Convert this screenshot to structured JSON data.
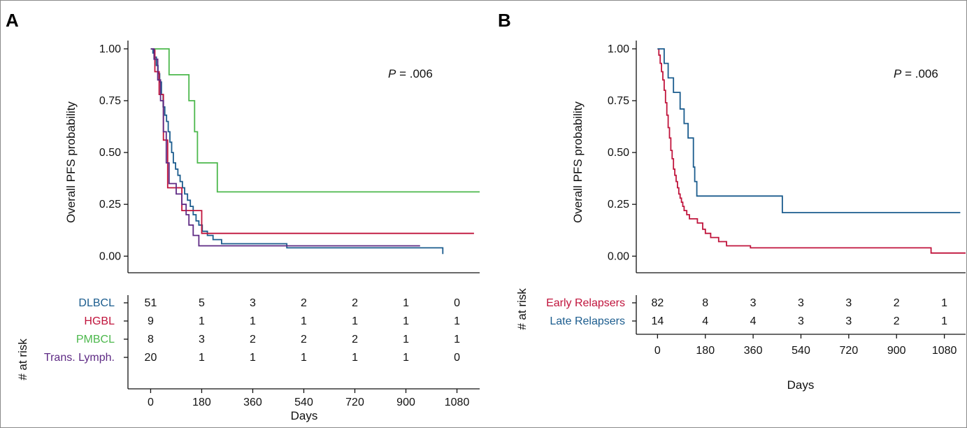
{
  "panels": {
    "a": {
      "letter": "A",
      "p_value": {
        "prefix": "P",
        "text": " = .006"
      },
      "ylabel": "Overall PFS probability",
      "xlabel": "Days",
      "risk_title": "# at risk"
    },
    "b": {
      "letter": "B",
      "p_value": {
        "prefix": "P",
        "text": " = .006"
      },
      "ylabel": "Overall PFS probability",
      "xlabel": "Days",
      "risk_title": "# at risk"
    }
  },
  "chart_data": [
    {
      "type": "line",
      "panel": "A",
      "ylabel": "Overall PFS probability",
      "xlabel": "Days",
      "xlim": [
        -80,
        1160
      ],
      "ylim": [
        -0.08,
        1.04
      ],
      "xticks": [
        0,
        180,
        360,
        540,
        720,
        900,
        1080
      ],
      "yticks": [
        0.0,
        0.25,
        0.5,
        0.75,
        1.0
      ],
      "ytick_labels": [
        "0.00",
        "0.25",
        "0.50",
        "0.75",
        "1.00"
      ],
      "annotation": "P = .006",
      "series": [
        {
          "name": "DLBCL",
          "color": "#1b5c8e",
          "points": [
            [
              0,
              1.0
            ],
            [
              8,
              0.98
            ],
            [
              14,
              0.96
            ],
            [
              20,
              0.92
            ],
            [
              26,
              0.88
            ],
            [
              32,
              0.84
            ],
            [
              38,
              0.78
            ],
            [
              44,
              0.72
            ],
            [
              50,
              0.68
            ],
            [
              56,
              0.65
            ],
            [
              62,
              0.6
            ],
            [
              68,
              0.55
            ],
            [
              74,
              0.5
            ],
            [
              80,
              0.45
            ],
            [
              88,
              0.42
            ],
            [
              96,
              0.39
            ],
            [
              104,
              0.36
            ],
            [
              112,
              0.33
            ],
            [
              120,
              0.3
            ],
            [
              130,
              0.27
            ],
            [
              140,
              0.24
            ],
            [
              150,
              0.2
            ],
            [
              160,
              0.17
            ],
            [
              170,
              0.15
            ],
            [
              182,
              0.12
            ],
            [
              200,
              0.1
            ],
            [
              220,
              0.08
            ],
            [
              250,
              0.06
            ],
            [
              480,
              0.04
            ],
            [
              1030,
              0.04
            ],
            [
              1030,
              0.01
            ]
          ]
        },
        {
          "name": "HGBL",
          "color": "#c0143c",
          "points": [
            [
              0,
              1.0
            ],
            [
              15,
              0.89
            ],
            [
              30,
              0.78
            ],
            [
              45,
              0.56
            ],
            [
              60,
              0.33
            ],
            [
              110,
              0.22
            ],
            [
              180,
              0.11
            ],
            [
              1140,
              0.11
            ]
          ]
        },
        {
          "name": "PMBCL",
          "color": "#4cb84c",
          "points": [
            [
              0,
              1.0
            ],
            [
              65,
              1.0
            ],
            [
              65,
              0.875
            ],
            [
              135,
              0.75
            ],
            [
              155,
              0.6
            ],
            [
              165,
              0.45
            ],
            [
              235,
              0.45
            ],
            [
              235,
              0.31
            ],
            [
              1160,
              0.31
            ]
          ]
        },
        {
          "name": "Trans. Lymph.",
          "color": "#5e2a84",
          "points": [
            [
              0,
              1.0
            ],
            [
              12,
              0.95
            ],
            [
              25,
              0.85
            ],
            [
              35,
              0.75
            ],
            [
              45,
              0.6
            ],
            [
              55,
              0.45
            ],
            [
              65,
              0.35
            ],
            [
              90,
              0.3
            ],
            [
              110,
              0.25
            ],
            [
              125,
              0.2
            ],
            [
              135,
              0.15
            ],
            [
              150,
              0.1
            ],
            [
              170,
              0.05
            ],
            [
              950,
              0.05
            ]
          ]
        }
      ],
      "risk_table": {
        "title": "# at risk",
        "times": [
          0,
          180,
          360,
          540,
          720,
          900,
          1080
        ],
        "rows": [
          {
            "label": "DLBCL",
            "color": "#1b5c8e",
            "counts": [
              51,
              5,
              3,
              2,
              2,
              1,
              0
            ]
          },
          {
            "label": "HGBL",
            "color": "#c0143c",
            "counts": [
              9,
              1,
              1,
              1,
              1,
              1,
              1
            ]
          },
          {
            "label": "PMBCL",
            "color": "#4cb84c",
            "counts": [
              8,
              3,
              2,
              2,
              2,
              1,
              1
            ]
          },
          {
            "label": "Trans. Lymph.",
            "color": "#5e2a84",
            "counts": [
              20,
              1,
              1,
              1,
              1,
              1,
              0
            ]
          }
        ]
      }
    },
    {
      "type": "line",
      "panel": "B",
      "ylabel": "Overall PFS probability",
      "xlabel": "Days",
      "xlim": [
        -80,
        1160
      ],
      "ylim": [
        -0.08,
        1.04
      ],
      "xticks": [
        0,
        180,
        360,
        540,
        720,
        900,
        1080
      ],
      "yticks": [
        0.0,
        0.25,
        0.5,
        0.75,
        1.0
      ],
      "ytick_labels": [
        "0.00",
        "0.25",
        "0.50",
        "0.75",
        "1.00"
      ],
      "annotation": "P = .006",
      "series": [
        {
          "name": "Early Relapsers",
          "color": "#c0143c",
          "points": [
            [
              0,
              1.0
            ],
            [
              5,
              0.97
            ],
            [
              10,
              0.93
            ],
            [
              15,
              0.89
            ],
            [
              20,
              0.85
            ],
            [
              25,
              0.8
            ],
            [
              30,
              0.74
            ],
            [
              35,
              0.68
            ],
            [
              40,
              0.62
            ],
            [
              45,
              0.57
            ],
            [
              50,
              0.51
            ],
            [
              55,
              0.47
            ],
            [
              60,
              0.42
            ],
            [
              65,
              0.39
            ],
            [
              70,
              0.36
            ],
            [
              75,
              0.33
            ],
            [
              80,
              0.3
            ],
            [
              85,
              0.28
            ],
            [
              90,
              0.26
            ],
            [
              95,
              0.24
            ],
            [
              100,
              0.22
            ],
            [
              110,
              0.2
            ],
            [
              120,
              0.18
            ],
            [
              150,
              0.16
            ],
            [
              170,
              0.13
            ],
            [
              180,
              0.11
            ],
            [
              200,
              0.09
            ],
            [
              230,
              0.07
            ],
            [
              260,
              0.05
            ],
            [
              350,
              0.04
            ],
            [
              1020,
              0.04
            ],
            [
              1030,
              0.015
            ],
            [
              1160,
              0.015
            ]
          ]
        },
        {
          "name": "Late Relapsers",
          "color": "#1b5c8e",
          "points": [
            [
              0,
              1.0
            ],
            [
              25,
              1.0
            ],
            [
              25,
              0.93
            ],
            [
              40,
              0.86
            ],
            [
              60,
              0.79
            ],
            [
              85,
              0.71
            ],
            [
              100,
              0.64
            ],
            [
              115,
              0.57
            ],
            [
              135,
              0.43
            ],
            [
              140,
              0.36
            ],
            [
              148,
              0.29
            ],
            [
              470,
              0.29
            ],
            [
              470,
              0.21
            ],
            [
              1140,
              0.21
            ]
          ]
        }
      ],
      "risk_table": {
        "title": "# at risk",
        "times": [
          0,
          180,
          360,
          540,
          720,
          900,
          1080
        ],
        "rows": [
          {
            "label": "Early Relapsers",
            "color": "#c0143c",
            "counts": [
              82,
              8,
              3,
              3,
              3,
              2,
              1
            ]
          },
          {
            "label": "Late Relapsers",
            "color": "#1b5c8e",
            "counts": [
              14,
              4,
              4,
              3,
              3,
              2,
              1
            ]
          }
        ]
      }
    }
  ]
}
